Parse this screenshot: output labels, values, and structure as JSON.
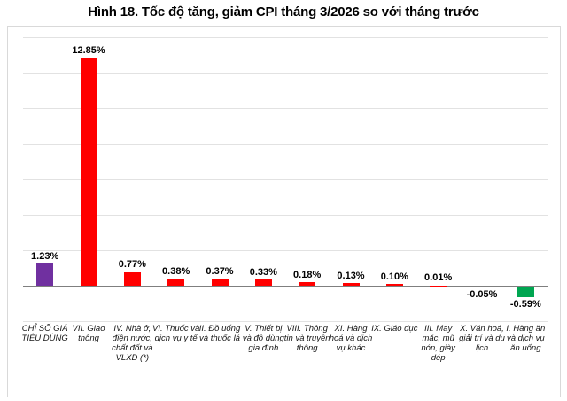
{
  "title": "Hình 18. Tốc độ tăng, giảm CPI tháng 3/2026 so với tháng trước",
  "chart_data": {
    "type": "bar",
    "title": "Hình 18. Tốc độ tăng, giảm CPI tháng 3/2026 so với tháng trước",
    "categories": [
      "CHỈ SỐ GIÁ TIÊU DÙNG",
      "VII. Giao thông",
      "IV. Nhà ở, điện nước, chất đốt và VLXD (*)",
      "VI. Thuốc và dịch vụ y tế",
      "II. Đồ uống và thuốc lá",
      "V. Thiết bị và đồ dùng gia đình",
      "VIII. Thông tin và truyền thông",
      "XI. Hàng hoá và dịch vụ khác",
      "IX. Giáo dục",
      "III. May mặc, mũ nón, giày dép",
      "X. Văn hoá, giải trí và du lịch",
      "I. Hàng ăn và dịch vụ ăn uống"
    ],
    "values": [
      1.23,
      12.85,
      0.77,
      0.38,
      0.37,
      0.33,
      0.18,
      0.13,
      0.1,
      0.01,
      -0.05,
      -0.59
    ],
    "value_labels": [
      "1.23%",
      "12.85%",
      "0.77%",
      "0.38%",
      "0.37%",
      "0.33%",
      "0.18%",
      "0.13%",
      "0.10%",
      "0.01%",
      "-0.05%",
      "-0.59%"
    ],
    "bar_colors": [
      "#7030A0",
      "#FF0000",
      "#FF0000",
      "#FF0000",
      "#FF0000",
      "#FF0000",
      "#FF0000",
      "#FF0000",
      "#FF0000",
      "#FF0000",
      "#00A651",
      "#00A651"
    ],
    "xlabel": "",
    "ylabel": "",
    "ylim": [
      -2,
      14
    ],
    "gridline_step": 2,
    "grid": true,
    "legend": false,
    "colors": {
      "cpi_bar": "#7030A0",
      "positive_bar": "#FF0000",
      "negative_bar": "#00A651",
      "gridline": "#E2E2E2",
      "axis_line": "#7F7F7F",
      "chart_border": "#D9D9D9",
      "text": "#000000"
    }
  }
}
